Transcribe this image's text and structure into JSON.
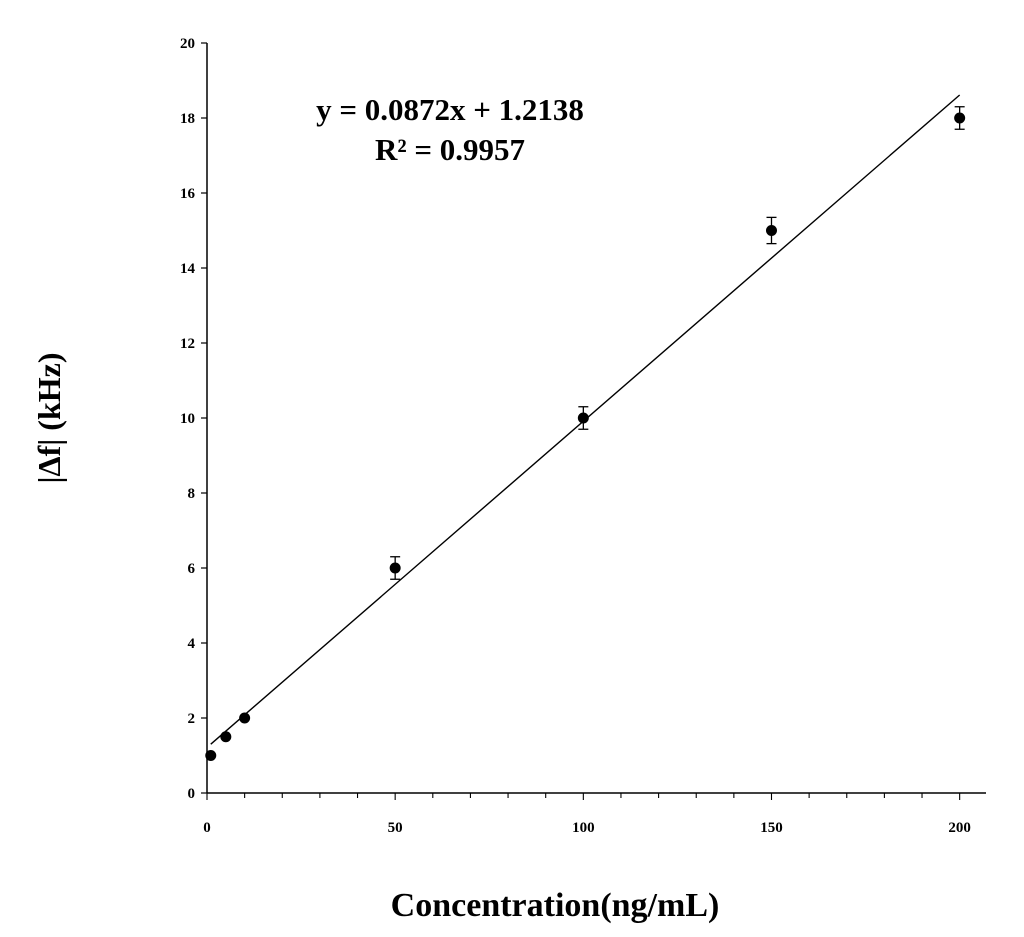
{
  "chart_data": {
    "type": "scatter",
    "xlabel": "Concentration(ng/mL)",
    "ylabel": "|Δf| (kHz)",
    "xlim": [
      0,
      207
    ],
    "ylim": [
      0,
      20
    ],
    "x_ticks": [
      0,
      50,
      100,
      150,
      200
    ],
    "y_ticks": [
      0,
      2,
      4,
      6,
      8,
      10,
      12,
      14,
      16,
      18,
      20
    ],
    "grid": false,
    "series": [
      {
        "x": [
          1,
          5,
          10,
          50,
          100,
          150,
          200
        ],
        "y": [
          1.0,
          1.5,
          2.0,
          6.0,
          10.0,
          15.0,
          18.0
        ],
        "error": [
          0,
          0,
          0,
          0.3,
          0.3,
          0.35,
          0.3
        ]
      }
    ],
    "trendline": {
      "type": "linear",
      "slope": 0.0872,
      "intercept": 1.2138,
      "x_range": [
        1,
        200
      ]
    },
    "annotations": {
      "equation": "y = 0.0872x + 1.2138",
      "r_squared": "R² = 0.9957"
    }
  }
}
